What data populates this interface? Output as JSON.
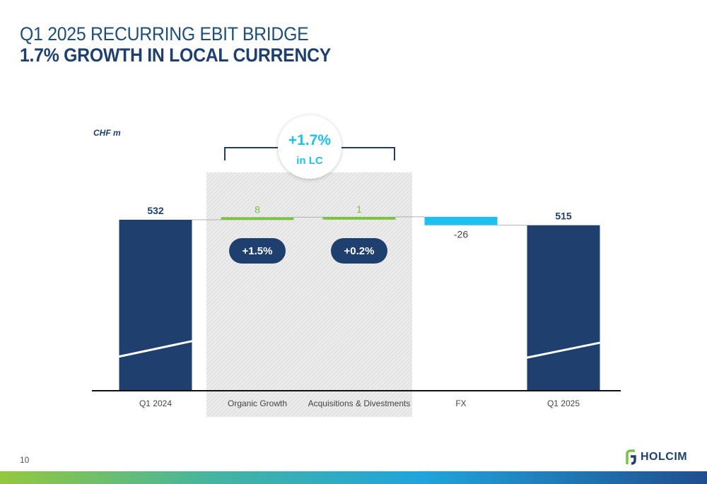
{
  "header": {
    "title_line1": "Q1 2025 RECURRING EBIT BRIDGE",
    "title_line2": "1.7% GROWTH IN LOCAL CURRENCY"
  },
  "unit_label": "CHF m",
  "page_number": "10",
  "logo_text": "HOLCIM",
  "callout": {
    "value": "+1.7%",
    "sub": "in LC"
  },
  "badges": [
    "+1.5%",
    "+0.2%"
  ],
  "colors": {
    "total": "#1f3f6e",
    "increase": "#7cc242",
    "decrease": "#1ec0f0",
    "title": "#1f4e79"
  },
  "chart_data": {
    "type": "bar",
    "subtype": "waterfall",
    "categories": [
      "Q1 2024",
      "Organic Growth",
      "Acquisitions & Divestments",
      "FX",
      "Q1 2025"
    ],
    "values": [
      532,
      8,
      1,
      -26,
      515
    ],
    "labels": [
      "532",
      "8",
      "1",
      "-26",
      "515"
    ],
    "kinds": [
      "total",
      "increase",
      "increase",
      "decrease",
      "total"
    ],
    "ylabel": "CHF m",
    "highlighted_categories": [
      "Organic Growth",
      "Acquisitions & Divestments"
    ]
  }
}
